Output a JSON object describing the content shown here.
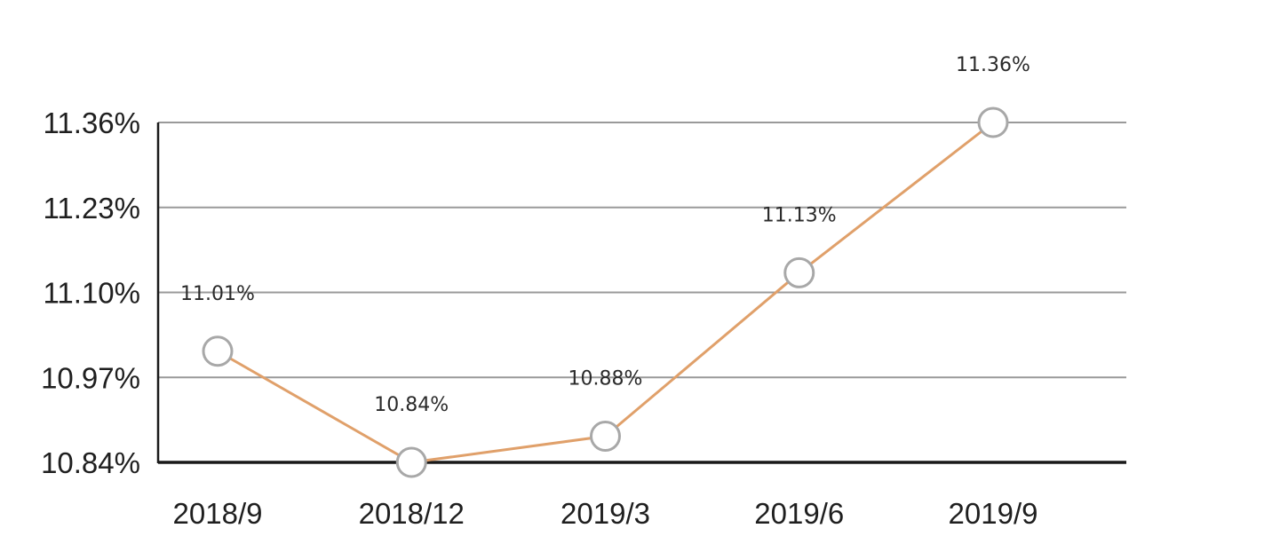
{
  "chart_data": {
    "type": "line",
    "title": "",
    "xlabel": "",
    "ylabel": "",
    "categories": [
      "2018/9",
      "2018/12",
      "2019/3",
      "2019/6",
      "2019/9"
    ],
    "series": [
      {
        "values": [
          11.01,
          10.84,
          10.88,
          11.13,
          11.36
        ],
        "data_labels": [
          "11.01%",
          "10.84%",
          "10.88%",
          "11.13%",
          "11.36%"
        ]
      }
    ],
    "yticks": [
      10.84,
      10.97,
      11.1,
      11.23,
      11.36
    ],
    "ytick_labels": [
      "10.84%",
      "10.97%",
      "11.10%",
      "11.23%",
      "11.36%"
    ],
    "ylim": [
      10.84,
      11.36
    ],
    "grid": true,
    "legend": "none",
    "colors": {
      "line": "#e0a06a",
      "marker_fill": "#ffffff",
      "marker_stroke": "#a8a8a8",
      "grid": "#9a9a9a",
      "axis": "#1a1a1a"
    }
  }
}
